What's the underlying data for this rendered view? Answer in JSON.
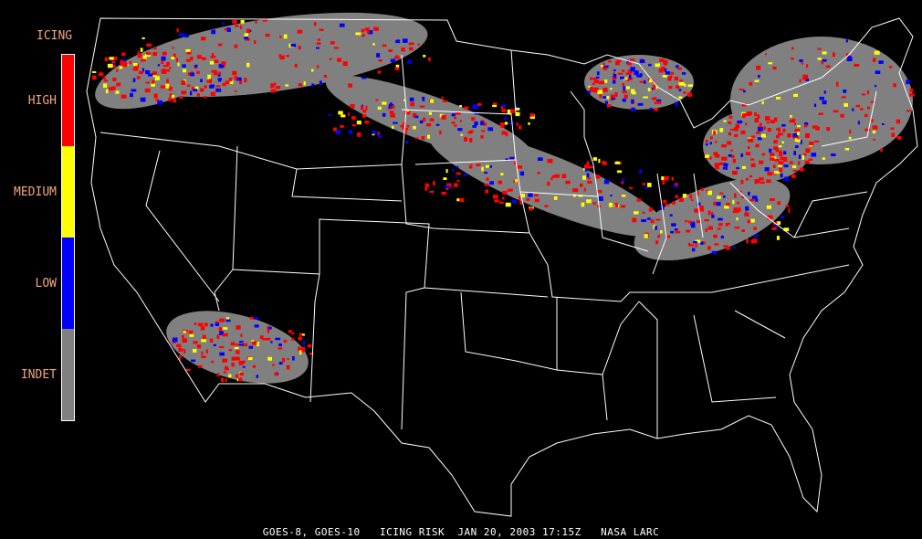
{
  "legend": {
    "title": "ICING",
    "levels": [
      {
        "label": "HIGH",
        "color": "#ff0000"
      },
      {
        "label": "MEDIUM",
        "color": "#ffff00"
      },
      {
        "label": "LOW",
        "color": "#0000ff"
      },
      {
        "label": "INDET",
        "color": "#808080"
      }
    ]
  },
  "caption": "GOES-8, GOES-10   ICING RISK  JAN 20, 2003 17:15Z   NASA LARC",
  "colors": {
    "background": "#000000",
    "boundaries": "#ffffff",
    "cloud": "#808080",
    "label": "#f4a67e"
  }
}
